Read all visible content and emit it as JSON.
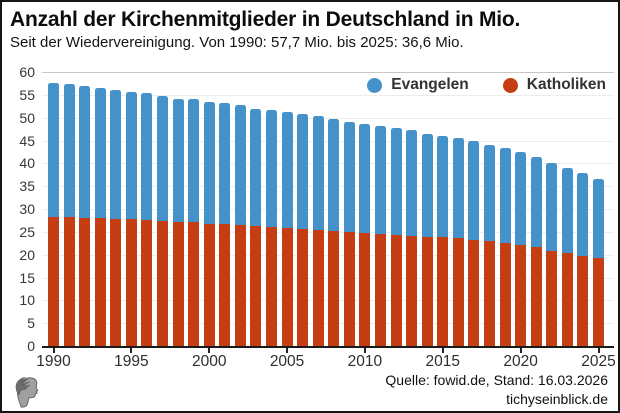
{
  "header": {
    "title": "Anzahl der Kirchenmitglieder in Deutschland in Mio.",
    "subtitle": "Seit der Wiedervereinigung. Von 1990: 57,7 Mio. bis 2025: 36,6 Mio."
  },
  "legend": {
    "items": [
      {
        "label": "Evangelen",
        "color": "#4592cb"
      },
      {
        "label": "Katholiken",
        "color": "#c53e13"
      }
    ]
  },
  "chart_data": {
    "type": "bar",
    "stacked": true,
    "title": "Anzahl der Kirchenmitglieder in Deutschland in Mio.",
    "subtitle": "Seit der Wiedervereinigung. Von 1990: 57,7 Mio. bis 2025: 36,6 Mio.",
    "x": [
      1990,
      1991,
      1992,
      1993,
      1994,
      1995,
      1996,
      1997,
      1998,
      1999,
      2000,
      2001,
      2002,
      2003,
      2004,
      2005,
      2006,
      2007,
      2008,
      2009,
      2010,
      2011,
      2012,
      2013,
      2014,
      2015,
      2016,
      2017,
      2018,
      2019,
      2020,
      2021,
      2022,
      2023,
      2024,
      2025
    ],
    "series": [
      {
        "name": "Katholiken",
        "color": "#c53e13",
        "stack_position": "bottom",
        "values": [
          28.3,
          28.2,
          28.1,
          28.0,
          27.9,
          27.8,
          27.6,
          27.4,
          27.2,
          27.1,
          26.8,
          26.7,
          26.5,
          26.2,
          26.0,
          25.9,
          25.7,
          25.5,
          25.2,
          24.9,
          24.7,
          24.5,
          24.3,
          24.2,
          23.9,
          23.8,
          23.6,
          23.3,
          23.0,
          22.6,
          22.2,
          21.6,
          20.9,
          20.3,
          19.8,
          19.2
        ]
      },
      {
        "name": "Evangelen",
        "color": "#4592cb",
        "stack_position": "top",
        "values": [
          29.4,
          29.2,
          28.9,
          28.5,
          28.2,
          27.9,
          27.7,
          27.4,
          27.0,
          26.9,
          26.6,
          26.5,
          26.2,
          25.8,
          25.6,
          25.4,
          25.1,
          24.8,
          24.5,
          24.2,
          23.9,
          23.6,
          23.4,
          23.0,
          22.6,
          22.3,
          21.9,
          21.5,
          21.1,
          20.7,
          20.2,
          19.7,
          19.2,
          18.6,
          18.0,
          17.4
        ]
      }
    ],
    "totals_note": {
      "first_year_total": "57,7",
      "last_year_total": "36,6"
    },
    "ylim": [
      0,
      60
    ],
    "ytick_step": 5,
    "xticks": [
      1990,
      1995,
      2000,
      2005,
      2010,
      2015,
      2020,
      2025
    ],
    "grid": true,
    "legend": [
      "Evangelen",
      "Katholiken"
    ],
    "legend_position": "top-right",
    "xlabel": "",
    "ylabel": ""
  },
  "footer": {
    "source": "Quelle: fowid.de, Stand: 16.03.2026",
    "site": "tichyseinblick.de",
    "logo": "tichys-einblick-classical-head-logo"
  }
}
